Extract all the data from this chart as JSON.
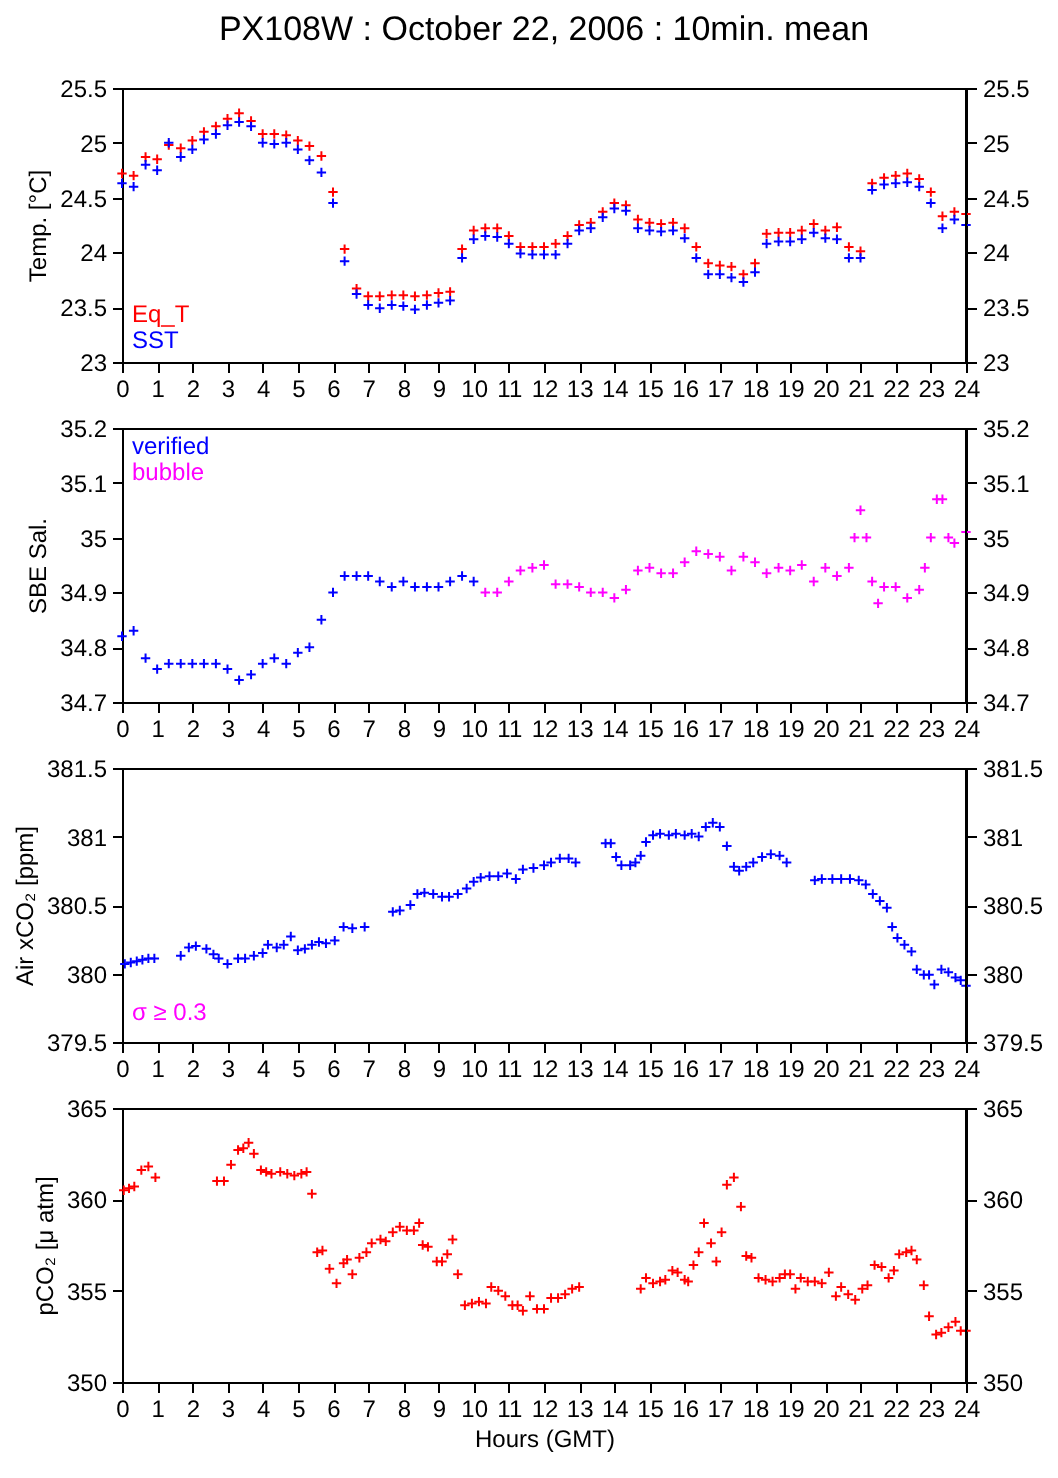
{
  "chart_data": [
    {
      "type": "scatter",
      "title": "PX108W : October 22, 2006 : 10min. mean",
      "ylabel": "Temp. [°C]",
      "xlim": [
        0,
        24
      ],
      "xticks": [
        0,
        1,
        2,
        3,
        4,
        5,
        6,
        7,
        8,
        9,
        10,
        11,
        12,
        13,
        14,
        15,
        16,
        17,
        18,
        19,
        20,
        21,
        22,
        23,
        24
      ],
      "ylim": [
        23,
        25.5
      ],
      "yticks": [
        23,
        23.5,
        24,
        24.5,
        25,
        25.5
      ],
      "y2lim": [
        23,
        25.5
      ],
      "y2ticks": [
        23,
        23.5,
        24,
        24.5,
        25,
        25.5
      ],
      "marker": "cross",
      "legend": "bottom left",
      "x": [
        0,
        0.33,
        0.67,
        1,
        1.33,
        1.67,
        2,
        2.33,
        2.67,
        3,
        3.33,
        3.67,
        4,
        4.33,
        4.67,
        5,
        5.33,
        5.67,
        6,
        6.33,
        6.67,
        7,
        7.33,
        7.67,
        8,
        8.33,
        8.67,
        9,
        9.33,
        9.67,
        10,
        10.33,
        10.67,
        11,
        11.33,
        11.67,
        12,
        12.33,
        12.67,
        13,
        13.33,
        13.67,
        14,
        14.33,
        14.67,
        15,
        15.33,
        15.67,
        16,
        16.33,
        16.67,
        17,
        17.33,
        17.67,
        18,
        18.33,
        18.67,
        19,
        19.33,
        19.67,
        20,
        20.33,
        20.67,
        21,
        21.33,
        21.67,
        22,
        22.33,
        22.67,
        23,
        23.33,
        23.67,
        24
      ],
      "series": [
        {
          "name": "Eq_T",
          "color": "#ff0000",
          "values": [
            24.72,
            24.7,
            24.87,
            24.85,
            24.98,
            24.95,
            25.02,
            25.1,
            25.15,
            25.22,
            25.27,
            25.2,
            25.08,
            25.08,
            25.07,
            25.02,
            24.97,
            24.88,
            24.55,
            24.03,
            23.67,
            23.6,
            23.6,
            23.61,
            23.61,
            23.6,
            23.61,
            23.63,
            23.64,
            24.03,
            24.2,
            24.22,
            24.22,
            24.15,
            24.05,
            24.05,
            24.05,
            24.08,
            24.15,
            24.25,
            24.27,
            24.37,
            24.45,
            24.43,
            24.3,
            24.27,
            24.26,
            24.27,
            24.22,
            24.05,
            23.9,
            23.88,
            23.87,
            23.8,
            23.9,
            24.17,
            24.18,
            24.18,
            24.2,
            24.26,
            24.2,
            24.23,
            24.05,
            24.01,
            24.63,
            24.68,
            24.7,
            24.72,
            24.67,
            24.55,
            24.33,
            24.37,
            24.35
          ]
        },
        {
          "name": "SST",
          "color": "#0000ff",
          "values": [
            24.63,
            24.6,
            24.8,
            24.75,
            25.0,
            24.87,
            24.94,
            25.03,
            25.08,
            25.16,
            25.19,
            25.15,
            25.0,
            24.99,
            25.0,
            24.94,
            24.84,
            24.73,
            24.45,
            23.92,
            23.62,
            23.52,
            23.49,
            23.52,
            23.51,
            23.48,
            23.52,
            23.54,
            23.56,
            23.95,
            24.12,
            24.15,
            24.14,
            24.08,
            23.99,
            23.98,
            23.98,
            23.98,
            24.08,
            24.2,
            24.22,
            24.32,
            24.4,
            24.38,
            24.22,
            24.2,
            24.19,
            24.2,
            24.13,
            23.95,
            23.8,
            23.8,
            23.77,
            23.73,
            23.82,
            24.08,
            24.1,
            24.1,
            24.12,
            24.18,
            24.13,
            24.12,
            23.95,
            23.95,
            24.57,
            24.62,
            24.63,
            24.64,
            24.6,
            24.45,
            24.22,
            24.3,
            24.25
          ]
        }
      ]
    },
    {
      "type": "scatter",
      "ylabel": "SBE Sal.",
      "xlim": [
        0,
        24
      ],
      "xticks": [
        0,
        1,
        2,
        3,
        4,
        5,
        6,
        7,
        8,
        9,
        10,
        11,
        12,
        13,
        14,
        15,
        16,
        17,
        18,
        19,
        20,
        21,
        22,
        23,
        24
      ],
      "ylim": [
        34.7,
        35.2
      ],
      "yticks": [
        34.7,
        34.8,
        34.9,
        35,
        35.1,
        35.2
      ],
      "y2lim": [
        34.7,
        35.2
      ],
      "y2ticks": [
        34.7,
        34.8,
        34.9,
        35,
        35.1,
        35.2
      ],
      "marker": "cross",
      "legend": "top left",
      "series": [
        {
          "name": "verified",
          "color": "#0000ff",
          "x": [
            0,
            0.33,
            0.67,
            1,
            1.33,
            1.67,
            2,
            2.33,
            2.67,
            3,
            3.33,
            3.67,
            4,
            4.33,
            4.67,
            5,
            5.33,
            5.67,
            6,
            6.33,
            6.67,
            7,
            7.33,
            7.67,
            8,
            8.33,
            8.67,
            9,
            9.33,
            9.67,
            10
          ],
          "values": [
            34.82,
            34.83,
            34.78,
            34.76,
            34.77,
            34.77,
            34.77,
            34.77,
            34.77,
            34.76,
            34.74,
            34.75,
            34.77,
            34.78,
            34.77,
            34.79,
            34.8,
            34.85,
            34.9,
            34.93,
            34.93,
            34.93,
            34.92,
            34.91,
            34.92,
            34.91,
            34.91,
            34.91,
            34.92,
            34.93,
            34.92
          ]
        },
        {
          "name": "bubble",
          "color": "#ff00ff",
          "x": [
            10.33,
            10.67,
            11,
            11.33,
            11.67,
            12,
            12.33,
            12.67,
            13,
            13.33,
            13.67,
            14,
            14.33,
            14.67,
            15,
            15.33,
            15.67,
            16,
            16.33,
            16.67,
            17,
            17.33,
            17.67,
            18,
            18.33,
            18.67,
            19,
            19.33,
            19.67,
            20,
            20.33,
            20.67,
            20.83,
            21,
            21.17,
            21.33,
            21.5,
            21.67,
            22,
            22.33,
            22.67,
            22.83,
            23,
            23.17,
            23.33,
            23.5,
            23.67,
            24
          ],
          "values": [
            34.9,
            34.9,
            34.92,
            34.94,
            34.945,
            34.95,
            34.915,
            34.915,
            34.91,
            34.9,
            34.9,
            34.89,
            34.905,
            34.94,
            34.945,
            34.935,
            34.935,
            34.955,
            34.975,
            34.97,
            34.965,
            34.94,
            34.965,
            34.955,
            34.935,
            34.945,
            34.94,
            34.95,
            34.92,
            34.945,
            34.93,
            34.945,
            35.0,
            35.05,
            35.0,
            34.92,
            34.88,
            34.91,
            34.91,
            34.89,
            34.905,
            34.945,
            35.0,
            35.07,
            35.07,
            35.0,
            34.99,
            35.01
          ]
        }
      ]
    },
    {
      "type": "scatter",
      "ylabel": "Air xCO₂ [ppm]",
      "xlim": [
        0,
        24
      ],
      "xticks": [
        0,
        1,
        2,
        3,
        4,
        5,
        6,
        7,
        8,
        9,
        10,
        11,
        12,
        13,
        14,
        15,
        16,
        17,
        18,
        19,
        20,
        21,
        22,
        23,
        24
      ],
      "ylim": [
        379.5,
        381.5
      ],
      "yticks": [
        379.5,
        380,
        380.5,
        381,
        381.5
      ],
      "y2lim": [
        379.5,
        381.5
      ],
      "y2ticks": [
        379.5,
        380,
        380.5,
        381,
        381.5
      ],
      "marker": "cross",
      "annotations": [
        "σ ≥ 0.3"
      ],
      "series": [
        {
          "color": "#0000ff",
          "x": [
            0.08,
            0.25,
            0.42,
            0.58,
            0.75,
            0.92,
            1.67,
            1.9,
            2.1,
            2.4,
            2.6,
            2.75,
            3.0,
            3.3,
            3.5,
            3.75,
            4.0,
            4.15,
            4.4,
            4.6,
            4.8,
            5.0,
            5.2,
            5.4,
            5.6,
            5.8,
            6.05,
            6.3,
            6.55,
            6.9,
            7.7,
            7.9,
            8.2,
            8.4,
            8.6,
            8.85,
            9.1,
            9.3,
            9.55,
            9.8,
            10.0,
            10.2,
            10.45,
            10.7,
            10.95,
            11.2,
            11.4,
            11.7,
            12.0,
            12.2,
            12.45,
            12.7,
            12.9,
            13.75,
            13.9,
            14.05,
            14.2,
            14.45,
            14.6,
            14.75,
            14.9,
            15.1,
            15.3,
            15.55,
            15.75,
            16.0,
            16.2,
            16.4,
            16.6,
            16.8,
            17.0,
            17.2,
            17.4,
            17.55,
            17.75,
            17.95,
            18.2,
            18.45,
            18.7,
            18.9,
            19.7,
            19.9,
            20.2,
            20.45,
            20.7,
            20.95,
            21.15,
            21.35,
            21.55,
            21.75,
            21.9,
            22.05,
            22.25,
            22.45,
            22.6,
            22.8,
            22.95,
            23.1,
            23.3,
            23.5,
            23.7,
            23.85,
            24.0
          ],
          "values": [
            380.07,
            380.08,
            380.09,
            380.1,
            380.11,
            380.11,
            380.13,
            380.19,
            380.2,
            380.18,
            380.14,
            380.11,
            380.07,
            380.11,
            380.11,
            380.13,
            380.15,
            380.21,
            380.19,
            380.21,
            380.27,
            380.17,
            380.18,
            380.21,
            380.23,
            380.22,
            380.24,
            380.34,
            380.33,
            380.34,
            380.45,
            380.46,
            380.5,
            380.58,
            380.59,
            380.58,
            380.56,
            380.56,
            380.58,
            380.62,
            380.67,
            380.7,
            380.71,
            380.71,
            380.73,
            380.69,
            380.76,
            380.77,
            380.79,
            380.81,
            380.84,
            380.84,
            380.81,
            380.95,
            380.95,
            380.85,
            380.79,
            380.79,
            380.81,
            380.86,
            380.96,
            381.01,
            381.02,
            381.01,
            381.02,
            381.01,
            381.02,
            381.0,
            381.07,
            381.1,
            381.07,
            380.93,
            380.78,
            380.75,
            380.78,
            380.81,
            380.85,
            380.87,
            380.86,
            380.81,
            380.68,
            380.69,
            380.69,
            380.69,
            380.69,
            380.68,
            380.65,
            380.58,
            380.53,
            380.48,
            380.34,
            380.26,
            380.21,
            380.16,
            380.03,
            379.99,
            379.99,
            379.92,
            380.03,
            380.01,
            379.97,
            379.95,
            379.91
          ]
        }
      ]
    },
    {
      "type": "scatter",
      "ylabel": "pCO₂ [μ atm]",
      "xlabel": "Hours (GMT)",
      "xlim": [
        0,
        24
      ],
      "xticks": [
        0,
        1,
        2,
        3,
        4,
        5,
        6,
        7,
        8,
        9,
        10,
        11,
        12,
        13,
        14,
        15,
        16,
        17,
        18,
        19,
        20,
        21,
        22,
        23,
        24
      ],
      "ylim": [
        350,
        365
      ],
      "yticks": [
        350,
        355,
        360,
        365
      ],
      "y2lim": [
        350,
        365
      ],
      "y2ticks": [
        350,
        355,
        360,
        365
      ],
      "marker": "cross",
      "series": [
        {
          "color": "#ff0000",
          "x": [
            0.05,
            0.2,
            0.35,
            0.55,
            0.75,
            0.95,
            2.7,
            2.9,
            3.1,
            3.3,
            3.45,
            3.6,
            3.75,
            3.95,
            4.1,
            4.25,
            4.5,
            4.7,
            4.9,
            5.1,
            5.25,
            5.4,
            5.55,
            5.7,
            5.9,
            6.1,
            6.3,
            6.4,
            6.55,
            6.75,
            6.95,
            7.1,
            7.35,
            7.5,
            7.7,
            7.9,
            8.1,
            8.3,
            8.45,
            8.55,
            8.7,
            8.95,
            9.1,
            9.25,
            9.4,
            9.55,
            9.75,
            9.95,
            10.15,
            10.35,
            10.5,
            10.7,
            10.9,
            11.1,
            11.25,
            11.4,
            11.6,
            11.8,
            12.0,
            12.2,
            12.4,
            12.6,
            12.8,
            13.0,
            14.75,
            14.9,
            15.1,
            15.3,
            15.45,
            15.65,
            15.8,
            16.0,
            16.1,
            16.25,
            16.4,
            16.55,
            16.75,
            16.9,
            17.05,
            17.2,
            17.4,
            17.6,
            17.75,
            17.9,
            18.1,
            18.3,
            18.5,
            18.7,
            18.85,
            19.0,
            19.15,
            19.3,
            19.5,
            19.7,
            19.9,
            20.1,
            20.3,
            20.45,
            20.65,
            20.85,
            21.05,
            21.2,
            21.4,
            21.6,
            21.8,
            21.95,
            22.1,
            22.3,
            22.45,
            22.6,
            22.8,
            22.95,
            23.15,
            23.3,
            23.5,
            23.7,
            23.85,
            24.0
          ],
          "values": [
            360.5,
            360.6,
            360.7,
            361.6,
            361.8,
            361.2,
            361.0,
            361.0,
            361.9,
            362.7,
            362.8,
            363.1,
            362.5,
            361.6,
            361.5,
            361.4,
            361.5,
            361.4,
            361.3,
            361.4,
            361.5,
            360.3,
            357.1,
            357.2,
            356.2,
            355.4,
            356.5,
            356.7,
            355.9,
            356.8,
            357.1,
            357.6,
            357.8,
            357.7,
            358.2,
            358.5,
            358.3,
            358.3,
            358.7,
            357.5,
            357.4,
            356.6,
            356.6,
            357.0,
            357.8,
            355.9,
            354.2,
            354.3,
            354.4,
            354.3,
            355.2,
            355.0,
            354.7,
            354.2,
            354.2,
            353.9,
            354.7,
            354.0,
            354.0,
            354.6,
            354.6,
            354.8,
            355.1,
            355.2,
            355.1,
            355.7,
            355.4,
            355.5,
            355.6,
            356.1,
            356.0,
            355.6,
            355.5,
            356.4,
            357.1,
            358.7,
            357.6,
            356.6,
            358.2,
            360.8,
            361.2,
            359.6,
            356.9,
            356.8,
            355.7,
            355.6,
            355.5,
            355.7,
            355.9,
            355.9,
            355.1,
            355.7,
            355.5,
            355.5,
            355.4,
            356.0,
            354.7,
            355.2,
            354.8,
            354.5,
            355.1,
            355.3,
            356.4,
            356.3,
            355.7,
            356.1,
            357.0,
            357.1,
            357.2,
            356.7,
            355.3,
            353.6,
            352.6,
            352.7,
            353.0,
            353.3,
            352.8,
            352.8
          ]
        }
      ]
    }
  ]
}
